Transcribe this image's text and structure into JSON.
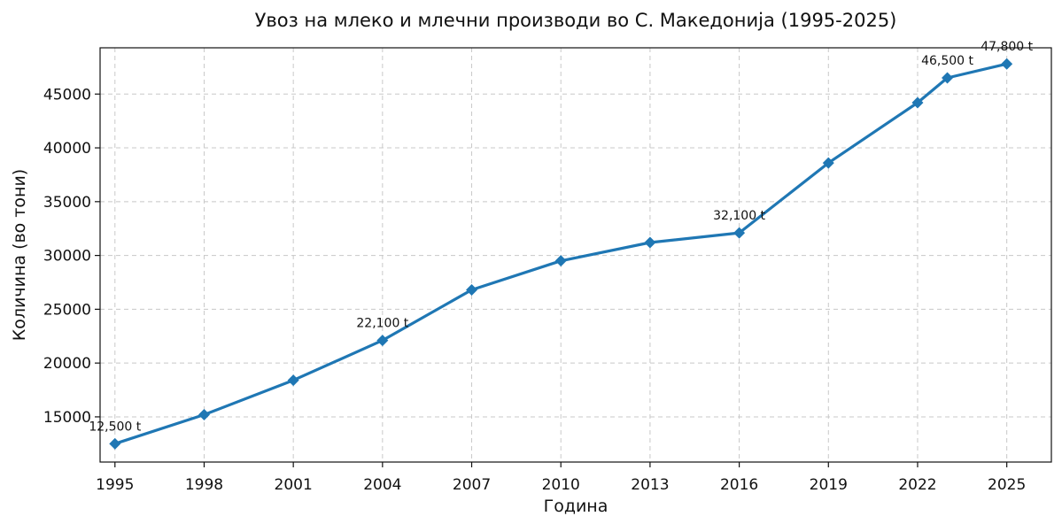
{
  "chart_data": {
    "type": "line",
    "title": "Увоз на млеко и млечни производи во С. Македонија (1995-2025)",
    "xlabel": "Година",
    "ylabel": "Количина (во тони)",
    "x_ticks": [
      1995,
      1998,
      2001,
      2004,
      2007,
      2010,
      2013,
      2016,
      2019,
      2022,
      2025
    ],
    "y_ticks": [
      15000,
      20000,
      25000,
      30000,
      35000,
      40000,
      45000
    ],
    "xlim": [
      1994.5,
      2026.5
    ],
    "ylim": [
      10800,
      49300
    ],
    "grid": true,
    "color": "#1f77b4",
    "marker": "diamond",
    "series": [
      {
        "x": [
          1995,
          1998,
          2001,
          2004,
          2007,
          2010,
          2013,
          2016,
          2019,
          2022,
          2023,
          2025
        ],
        "values": [
          12500,
          15200,
          18400,
          22100,
          26800,
          29500,
          31200,
          32100,
          38600,
          44200,
          46500,
          47800
        ]
      }
    ],
    "annotations": [
      {
        "x": 1995,
        "y": 12500,
        "text": "12,500 t"
      },
      {
        "x": 2004,
        "y": 22100,
        "text": "22,100 t"
      },
      {
        "x": 2016,
        "y": 32100,
        "text": "32,100 t"
      },
      {
        "x": 2023,
        "y": 46500,
        "text": "46,500 t"
      },
      {
        "x": 2025,
        "y": 47800,
        "text": "47,800 t"
      }
    ]
  }
}
